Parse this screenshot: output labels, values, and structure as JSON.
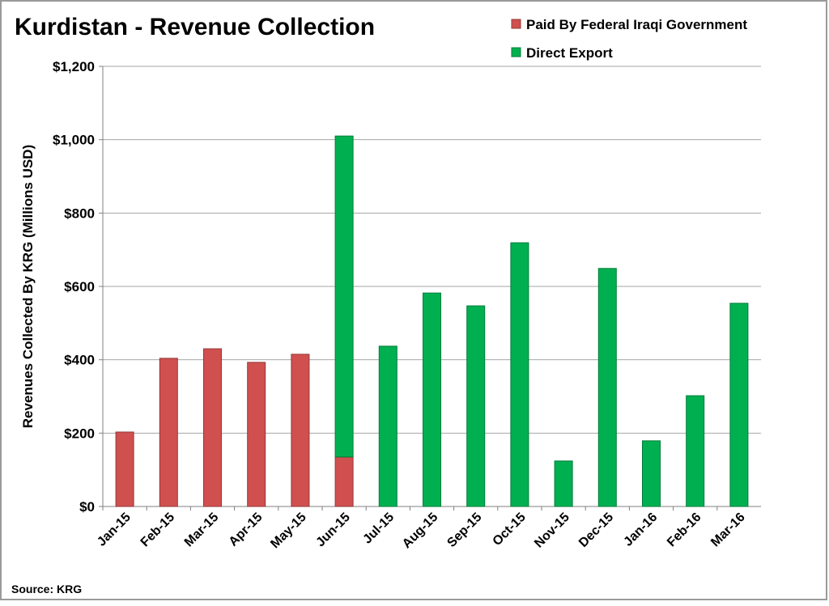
{
  "chart_data": {
    "type": "stacked_bar",
    "title": "Kurdistan - Revenue Collection",
    "y_label": "Revenues Collected By KRG (Millions USD)",
    "source": "Source: KRG",
    "categories": [
      "Jan-15",
      "Feb-15",
      "Mar-15",
      "Apr-15",
      "May-15",
      "Jun-15",
      "Jul-15",
      "Aug-15",
      "Sep-15",
      "Oct-15",
      "Nov-15",
      "Dec-15",
      "Jan-16",
      "Feb-16",
      "Mar-16"
    ],
    "series": [
      {
        "name": "Paid By Federal Iraqi Government",
        "color": "#d0504f",
        "values": [
          203,
          404,
          430,
          393,
          415,
          135,
          0,
          0,
          0,
          0,
          0,
          0,
          0,
          0,
          0
        ]
      },
      {
        "name": "Direct Export",
        "color": "#00b050",
        "values": [
          0,
          0,
          0,
          0,
          0,
          875,
          437,
          582,
          547,
          719,
          124,
          649,
          179,
          302,
          554
        ]
      }
    ],
    "ylim": [
      0,
      1200
    ],
    "yticks": [
      {
        "value": 0,
        "label": "$0"
      },
      {
        "value": 200,
        "label": "$200"
      },
      {
        "value": 400,
        "label": "$400"
      },
      {
        "value": 600,
        "label": "$600"
      },
      {
        "value": 800,
        "label": "$800"
      },
      {
        "value": 1000,
        "label": "$1,000"
      },
      {
        "value": 1200,
        "label": "$1,200"
      }
    ],
    "grid": true
  }
}
